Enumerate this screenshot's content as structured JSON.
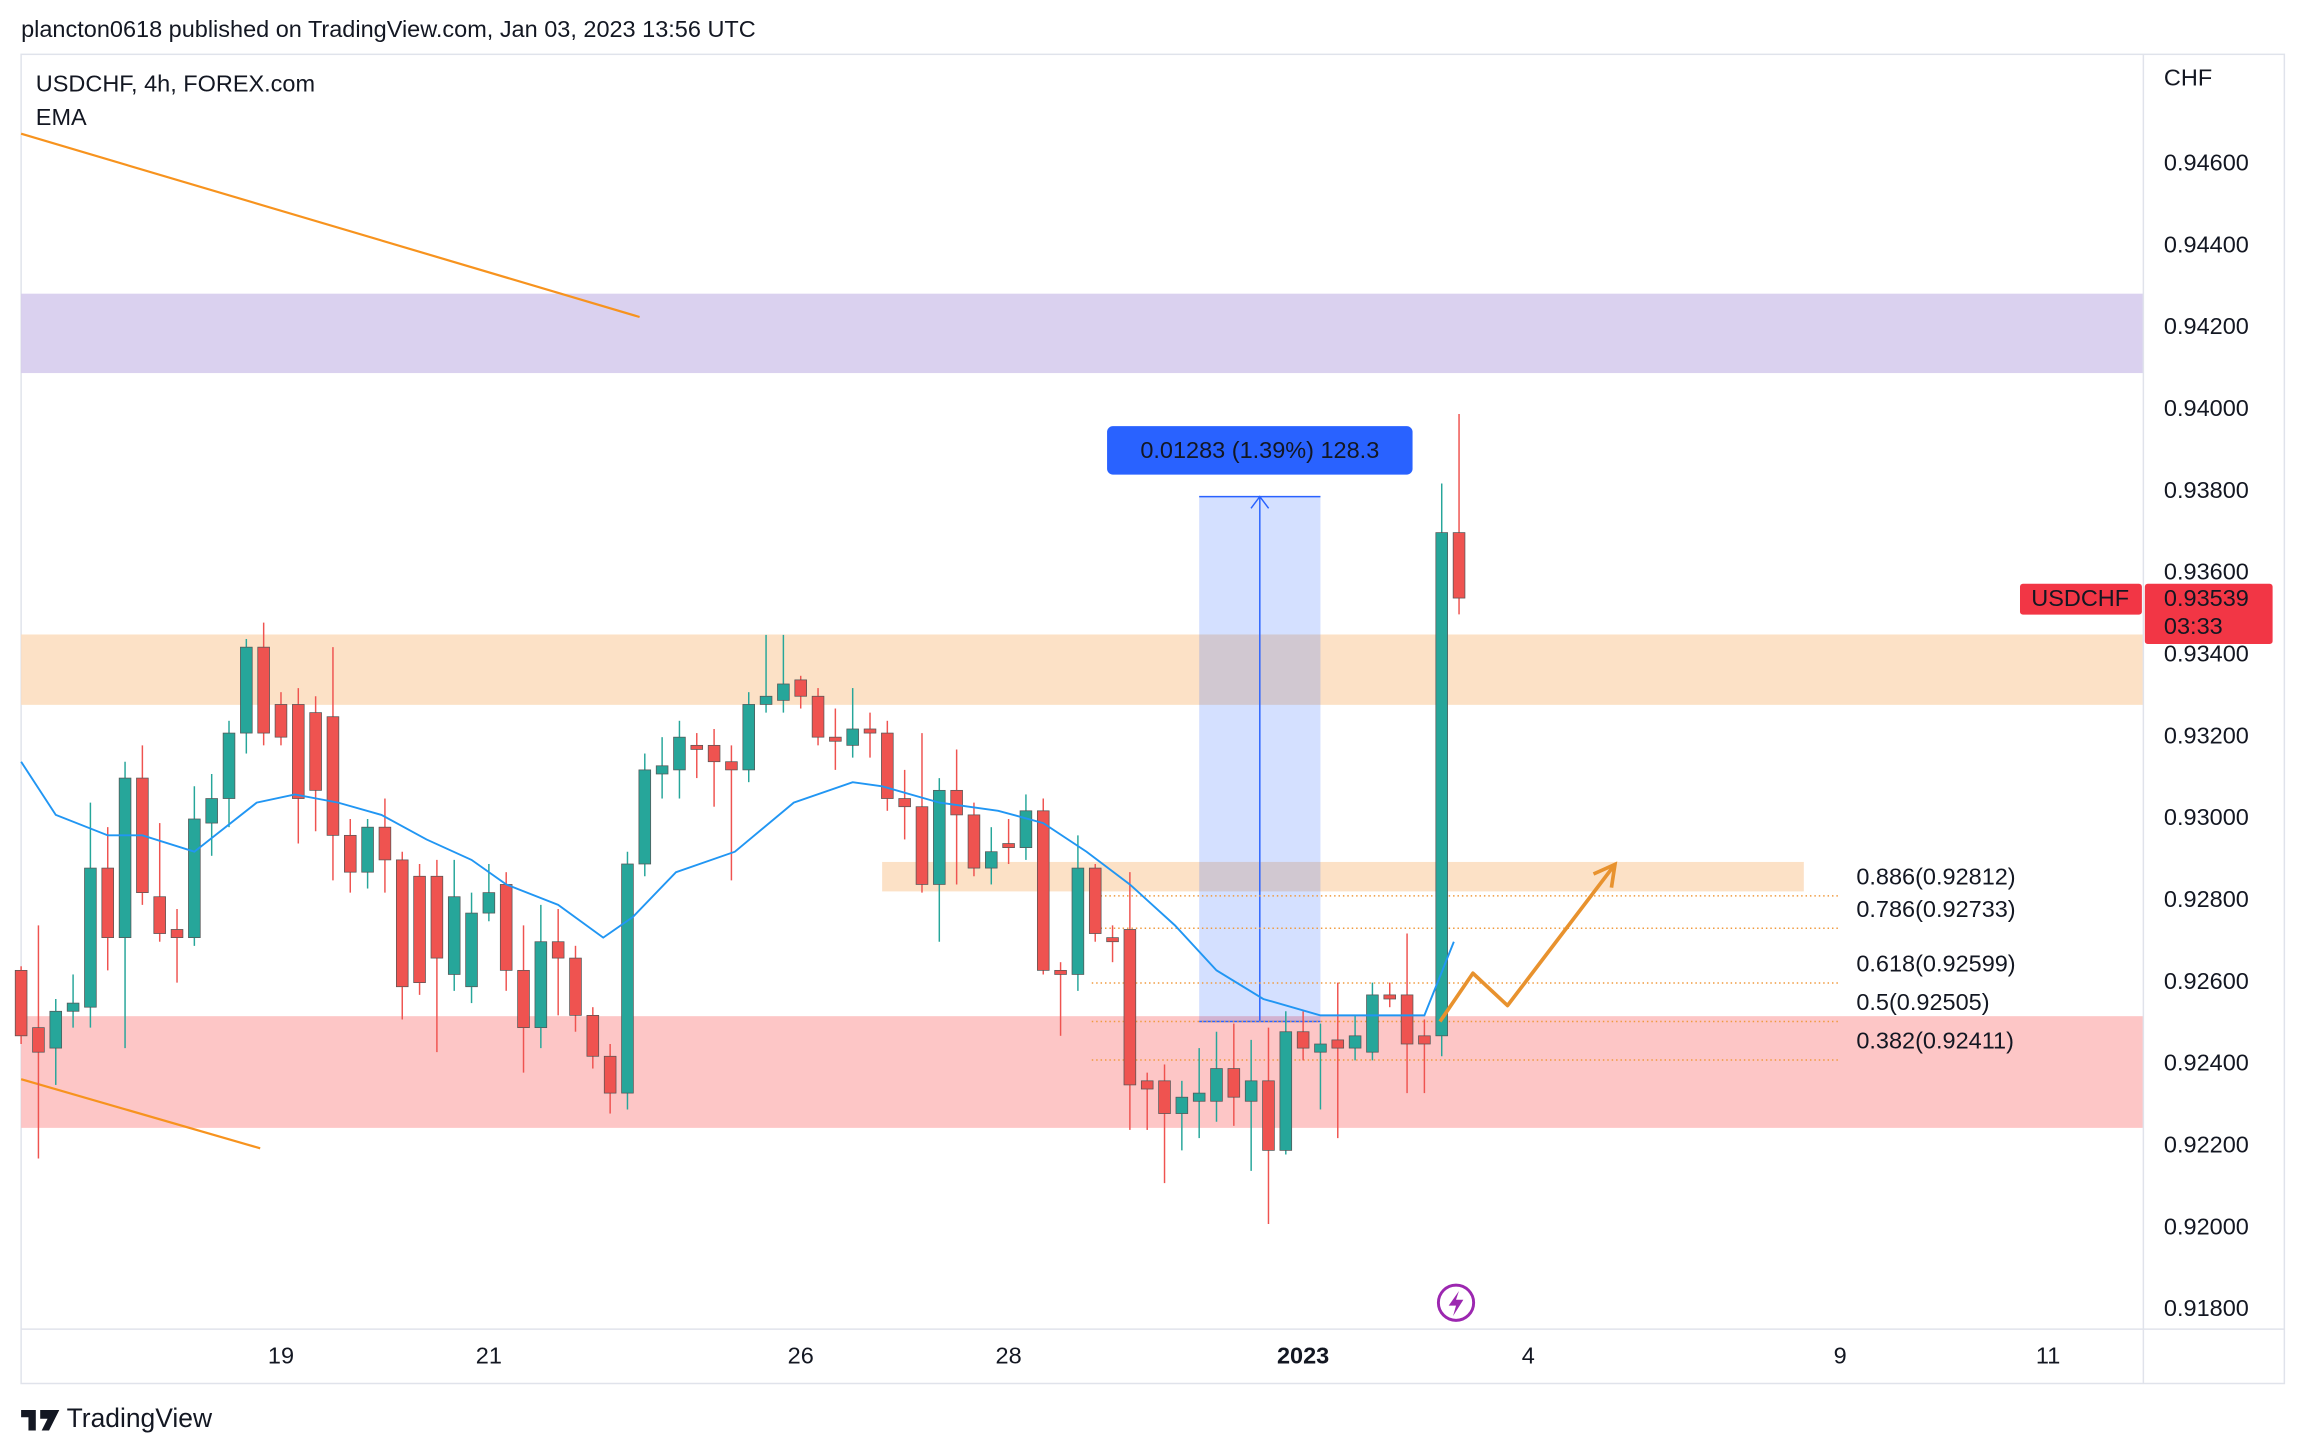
{
  "header": {
    "text": "plancton0618 published on TradingView.com, Jan 03, 2023 13:56 UTC"
  },
  "footer": {
    "brand": "TradingView"
  },
  "chart_data": {
    "type": "candlestick",
    "title": "USDCHF, 4h, FOREX.com",
    "y_axis_label": "CHF",
    "up_color": "#26a69a",
    "down_color": "#ef5350",
    "xlim": [
      0,
      122.5
    ],
    "ylim": [
      0.91753,
      0.94869
    ],
    "grid": false,
    "xticks": [
      {
        "value": 15,
        "label": "19"
      },
      {
        "value": 27,
        "label": "21"
      },
      {
        "value": 45,
        "label": "26"
      },
      {
        "value": 57,
        "label": "28"
      },
      {
        "value": 74,
        "label": "2023"
      },
      {
        "value": 87,
        "label": "4"
      },
      {
        "value": 105,
        "label": "9"
      },
      {
        "value": 117,
        "label": "11"
      }
    ],
    "yticks": [
      {
        "value": 0.918,
        "label": "0.91800"
      },
      {
        "value": 0.92,
        "label": "0.92000"
      },
      {
        "value": 0.922,
        "label": "0.92200"
      },
      {
        "value": 0.924,
        "label": "0.92400"
      },
      {
        "value": 0.926,
        "label": "0.92600"
      },
      {
        "value": 0.928,
        "label": "0.92800"
      },
      {
        "value": 0.93,
        "label": "0.93000"
      },
      {
        "value": 0.932,
        "label": "0.93200"
      },
      {
        "value": 0.934,
        "label": "0.93400"
      },
      {
        "value": 0.936,
        "label": "0.93600"
      },
      {
        "value": 0.938,
        "label": "0.93800"
      },
      {
        "value": 0.94,
        "label": "0.94000"
      },
      {
        "value": 0.942,
        "label": "0.94200"
      },
      {
        "value": 0.944,
        "label": "0.94400"
      },
      {
        "value": 0.946,
        "label": "0.94600"
      }
    ],
    "candles": {
      "name": "USDCHF",
      "open": [
        0.9263,
        0.9249,
        0.9244,
        0.9253,
        0.9254,
        0.9288,
        0.9271,
        0.931,
        0.9281,
        0.9273,
        0.9271,
        0.9299,
        0.9305,
        0.9321,
        0.9342,
        0.9328,
        0.9328,
        0.9326,
        0.9325,
        0.9296,
        0.9287,
        0.9298,
        0.929,
        0.9286,
        0.9286,
        0.9262,
        0.9259,
        0.9277,
        0.9284,
        0.9263,
        0.9249,
        0.927,
        0.9266,
        0.9252,
        0.9242,
        0.9233,
        0.9289,
        0.9311,
        0.9312,
        0.9318,
        0.9318,
        0.9314,
        0.9312,
        0.9328,
        0.9329,
        0.9334,
        0.933,
        0.932,
        0.9318,
        0.9322,
        0.9321,
        0.9305,
        0.9303,
        0.9284,
        0.9307,
        0.9301,
        0.9288,
        0.9294,
        0.9293,
        0.9302,
        0.9263,
        0.9262,
        0.9288,
        0.9271,
        0.9273,
        0.9236,
        0.9236,
        0.9228,
        0.9231,
        0.9231,
        0.9239,
        0.9231,
        0.9236,
        0.9219,
        0.9248,
        0.9243,
        0.9246,
        0.9244,
        0.9243,
        0.9257,
        0.9257,
        0.9247,
        0.9247,
        0.937
      ],
      "high": [
        0.9264,
        0.9274,
        0.9256,
        0.9262,
        0.9304,
        0.9298,
        0.9314,
        0.9318,
        0.9299,
        0.9278,
        0.9308,
        0.9311,
        0.9324,
        0.9344,
        0.9348,
        0.9331,
        0.9332,
        0.933,
        0.9342,
        0.93,
        0.93,
        0.9305,
        0.9292,
        0.9289,
        0.929,
        0.929,
        0.9282,
        0.9289,
        0.9287,
        0.9274,
        0.9279,
        0.9278,
        0.9269,
        0.9254,
        0.9245,
        0.9292,
        0.9316,
        0.932,
        0.9324,
        0.9321,
        0.9322,
        0.9318,
        0.9331,
        0.9345,
        0.9345,
        0.9335,
        0.9332,
        0.9327,
        0.9332,
        0.9326,
        0.9324,
        0.9312,
        0.9321,
        0.931,
        0.9317,
        0.9304,
        0.9298,
        0.93,
        0.9306,
        0.9305,
        0.9265,
        0.9296,
        0.9289,
        0.9274,
        0.9287,
        0.9238,
        0.924,
        0.9236,
        0.9244,
        0.9248,
        0.925,
        0.9246,
        0.9249,
        0.9253,
        0.9253,
        0.925,
        0.926,
        0.9252,
        0.926,
        0.926,
        0.9272,
        0.9251,
        0.9382,
        0.9399
      ],
      "low": [
        0.9245,
        0.9217,
        0.9235,
        0.9249,
        0.9249,
        0.9263,
        0.9244,
        0.9279,
        0.927,
        0.926,
        0.9269,
        0.9291,
        0.9298,
        0.9316,
        0.9318,
        0.9318,
        0.9294,
        0.9297,
        0.9285,
        0.9282,
        0.9283,
        0.9282,
        0.9251,
        0.9257,
        0.9243,
        0.9258,
        0.9255,
        0.9275,
        0.9258,
        0.9238,
        0.9244,
        0.9252,
        0.9248,
        0.9239,
        0.9228,
        0.9229,
        0.9286,
        0.9305,
        0.9305,
        0.931,
        0.9303,
        0.9285,
        0.9309,
        0.9326,
        0.9326,
        0.9327,
        0.9318,
        0.9312,
        0.9315,
        0.9315,
        0.9302,
        0.9295,
        0.9282,
        0.927,
        0.9284,
        0.9286,
        0.9284,
        0.9289,
        0.929,
        0.9262,
        0.9247,
        0.9258,
        0.927,
        0.9265,
        0.9224,
        0.9224,
        0.9211,
        0.9219,
        0.9222,
        0.9226,
        0.9225,
        0.9214,
        0.9201,
        0.9218,
        0.9241,
        0.9229,
        0.9222,
        0.9241,
        0.9241,
        0.9254,
        0.9233,
        0.9233,
        0.9242,
        0.935
      ],
      "close": [
        0.9247,
        0.9243,
        0.9253,
        0.9255,
        0.9288,
        0.9271,
        0.931,
        0.9282,
        0.9272,
        0.9271,
        0.93,
        0.9305,
        0.9321,
        0.9342,
        0.9321,
        0.932,
        0.9305,
        0.9307,
        0.9296,
        0.9287,
        0.9298,
        0.929,
        0.9259,
        0.926,
        0.9266,
        0.9281,
        0.9277,
        0.9282,
        0.9263,
        0.9249,
        0.927,
        0.9266,
        0.9252,
        0.9242,
        0.9233,
        0.9289,
        0.9312,
        0.9313,
        0.932,
        0.9317,
        0.9314,
        0.9312,
        0.9328,
        0.933,
        0.9333,
        0.933,
        0.932,
        0.9319,
        0.9322,
        0.9321,
        0.9305,
        0.9303,
        0.9284,
        0.9307,
        0.9301,
        0.9288,
        0.9292,
        0.9293,
        0.9302,
        0.9263,
        0.9262,
        0.9288,
        0.9272,
        0.927,
        0.9235,
        0.9234,
        0.9228,
        0.9232,
        0.9233,
        0.9239,
        0.9232,
        0.9236,
        0.9219,
        0.9248,
        0.9244,
        0.9245,
        0.9244,
        0.9247,
        0.9257,
        0.9256,
        0.9245,
        0.9245,
        0.937,
        0.9354
      ]
    },
    "ema": {
      "name": "EMA",
      "color": "#2196f3",
      "x": [
        0,
        2,
        5,
        7,
        10,
        11.5,
        13.6,
        15.8,
        18.3,
        20.8,
        23.4,
        26,
        28,
        31,
        33.6,
        35.3,
        37.8,
        41.2,
        44.6,
        48,
        49.7,
        53,
        56.4,
        59,
        61.5,
        64,
        66.6,
        69,
        71.7,
        75,
        78.5,
        81,
        82.7
      ],
      "values": [
        0.9314,
        0.9301,
        0.9296,
        0.9296,
        0.9292,
        0.9297,
        0.9304,
        0.9306,
        0.9304,
        0.9301,
        0.9295,
        0.929,
        0.9284,
        0.9279,
        0.9271,
        0.9276,
        0.9287,
        0.9292,
        0.9304,
        0.9309,
        0.9308,
        0.9304,
        0.9302,
        0.9299,
        0.9292,
        0.9284,
        0.9274,
        0.9263,
        0.9256,
        0.9252,
        0.9252,
        0.9252,
        0.927
      ]
    },
    "zones": [
      {
        "ylim": [
          0.9409,
          0.94284
        ],
        "color": "#d4c9ec"
      },
      {
        "ylim": [
          0.93279,
          0.93451
        ],
        "color": "#fbdcbc"
      },
      {
        "ylim": [
          0.92245,
          0.92518
        ],
        "color": "#fdbcbc"
      },
      {
        "ylim": [
          0.92823,
          0.92895
        ],
        "xlim": [
          49.7,
          102.9
        ],
        "color": "#fbdcbc"
      }
    ],
    "trend_lines": [
      {
        "x": [
          0,
          35.7
        ],
        "values": [
          0.94675,
          0.94227
        ],
        "color": "#f7931e"
      },
      {
        "x": [
          0,
          13.8
        ],
        "values": [
          0.92364,
          0.92195
        ],
        "color": "#f7931e"
      }
    ],
    "projection": {
      "x": [
        81.9,
        83.8,
        85.8,
        92
      ],
      "values": [
        0.92505,
        0.92623,
        0.92544,
        0.92889
      ],
      "color": "#e8922e"
    },
    "fib_levels": [
      {
        "value": 0.92812,
        "label": "0.886(0.92812)"
      },
      {
        "value": 0.92733,
        "label": "0.786(0.92733)"
      },
      {
        "value": 0.92599,
        "label": "0.618(0.92599)"
      },
      {
        "value": 0.92505,
        "label": "0.5(0.92505)"
      },
      {
        "value": 0.92411,
        "label": "0.382(0.92411)"
      }
    ],
    "fib_x": [
      61.8,
      105
    ],
    "fib_color": "#f09a3e",
    "measure": {
      "x": [
        68,
        75
      ],
      "values": [
        0.92505,
        0.93788
      ],
      "label": "0.01283 (1.39%) 128.3",
      "color": "#2962ff"
    },
    "last_price": {
      "name": "USDCHF",
      "value": 0.93539,
      "countdown": "03:33",
      "color": "#f23645"
    }
  }
}
